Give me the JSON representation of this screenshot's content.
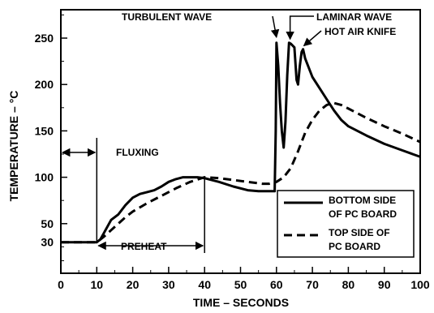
{
  "chart_data": {
    "type": "line",
    "xlabel": "TIME – SECONDS",
    "ylabel": "TEMPERATURE – °C",
    "xlim": [
      0,
      100
    ],
    "ylim": [
      0,
      260
    ],
    "x_ticks": [
      0,
      10,
      20,
      30,
      40,
      50,
      60,
      70,
      80,
      90,
      100
    ],
    "y_ticks": [
      30,
      50,
      100,
      150,
      200,
      250
    ],
    "grid": false,
    "legend_position": "bottom-right",
    "series": [
      {
        "name": "BOTTOM SIDE OF PC BOARD",
        "style": "solid",
        "points": [
          [
            0,
            30
          ],
          [
            10,
            30
          ],
          [
            11,
            33
          ],
          [
            12,
            40
          ],
          [
            13,
            47
          ],
          [
            14,
            54
          ],
          [
            16,
            60
          ],
          [
            18,
            70
          ],
          [
            20,
            78
          ],
          [
            22,
            82
          ],
          [
            24,
            84
          ],
          [
            26,
            86
          ],
          [
            28,
            90
          ],
          [
            30,
            95
          ],
          [
            32,
            98
          ],
          [
            34,
            100
          ],
          [
            36,
            100
          ],
          [
            38,
            100
          ],
          [
            40,
            99
          ],
          [
            44,
            95
          ],
          [
            48,
            90
          ],
          [
            52,
            86
          ],
          [
            55,
            85
          ],
          [
            59.5,
            85
          ],
          [
            59.8,
            150
          ],
          [
            60,
            245
          ],
          [
            60.5,
            220
          ],
          [
            61,
            180
          ],
          [
            61.5,
            150
          ],
          [
            62,
            132
          ],
          [
            62.5,
            160
          ],
          [
            63,
            210
          ],
          [
            63.5,
            245
          ],
          [
            64,
            244
          ],
          [
            65,
            240
          ],
          [
            65.6,
            205
          ],
          [
            66,
            200
          ],
          [
            66.5,
            220
          ],
          [
            67,
            235
          ],
          [
            67.4,
            238
          ],
          [
            68,
            228
          ],
          [
            70,
            208
          ],
          [
            72,
            196
          ],
          [
            74,
            184
          ],
          [
            76,
            172
          ],
          [
            78,
            162
          ],
          [
            80,
            155
          ],
          [
            85,
            145
          ],
          [
            90,
            136
          ],
          [
            95,
            129
          ],
          [
            100,
            122
          ]
        ]
      },
      {
        "name": "TOP SIDE OF PC BOARD",
        "style": "dashed",
        "points": [
          [
            0,
            30
          ],
          [
            10,
            30
          ],
          [
            12,
            36
          ],
          [
            14,
            43
          ],
          [
            16,
            50
          ],
          [
            18,
            57
          ],
          [
            20,
            63
          ],
          [
            24,
            72
          ],
          [
            28,
            80
          ],
          [
            32,
            88
          ],
          [
            36,
            95
          ],
          [
            40,
            100
          ],
          [
            44,
            99
          ],
          [
            48,
            97
          ],
          [
            52,
            95
          ],
          [
            56,
            93
          ],
          [
            58,
            93
          ],
          [
            60,
            95
          ],
          [
            62,
            100
          ],
          [
            64,
            110
          ],
          [
            66,
            128
          ],
          [
            68,
            148
          ],
          [
            70,
            162
          ],
          [
            72,
            172
          ],
          [
            74,
            178
          ],
          [
            76,
            180
          ],
          [
            78,
            178
          ],
          [
            80,
            174
          ],
          [
            85,
            164
          ],
          [
            90,
            155
          ],
          [
            95,
            147
          ],
          [
            100,
            138
          ]
        ]
      }
    ],
    "annotations": [
      "TURBULENT WAVE",
      "LAMINAR WAVE",
      "HOT AIR KNIFE",
      "FLUXING",
      "PREHEAT"
    ],
    "legend": {
      "line1": [
        "BOTTOM SIDE",
        "OF PC BOARD"
      ],
      "line2": [
        "TOP SIDE OF",
        "PC BOARD"
      ]
    }
  }
}
